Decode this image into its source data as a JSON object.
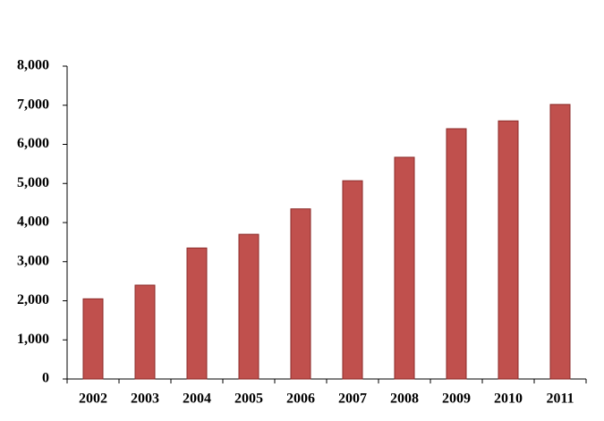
{
  "chart_data": {
    "type": "bar",
    "categories": [
      "2002",
      "2003",
      "2004",
      "2005",
      "2006",
      "2007",
      "2008",
      "2009",
      "2010",
      "2011"
    ],
    "values": [
      2050,
      2400,
      3350,
      3700,
      4350,
      5070,
      5670,
      6400,
      6600,
      7020
    ],
    "color": "#c0504d",
    "ylim": [
      0,
      8000
    ],
    "yticks": [
      0,
      {
        "value": 1000,
        "label": "1,000"
      },
      {
        "value": 2000,
        "label": "2,000"
      },
      {
        "value": 3000,
        "label": "3,000"
      },
      {
        "value": 4000,
        "label": "4,000"
      },
      {
        "value": 5000,
        "label": "5,000"
      },
      {
        "value": 6000,
        "label": "6,000"
      },
      {
        "value": 7000,
        "label": "7,000"
      },
      {
        "value": 8000,
        "label": "8,000"
      }
    ],
    "grid": false
  }
}
